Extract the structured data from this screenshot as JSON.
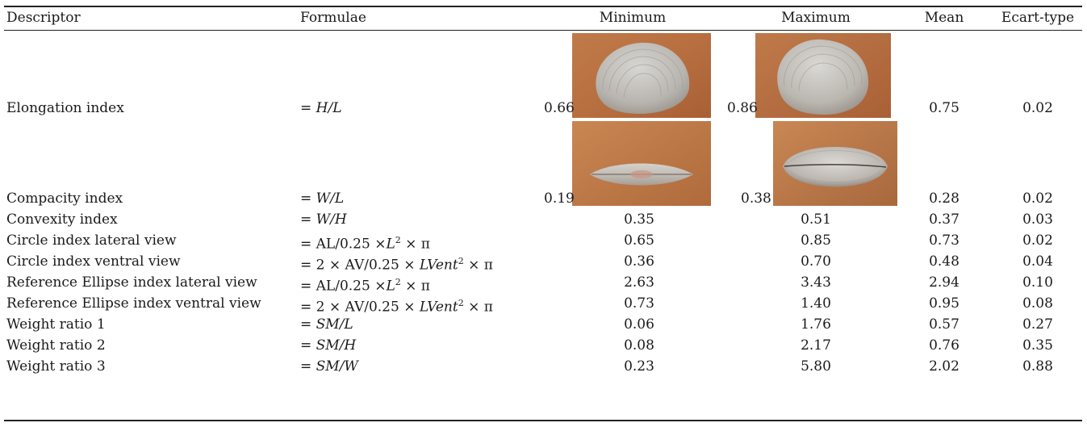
{
  "header": {
    "descriptor": "Descriptor",
    "formulae": "Formulae",
    "minimum": "Minimum",
    "maximum": "Maximum",
    "mean": "Mean",
    "ecart": "Ecart-type"
  },
  "rows": [
    {
      "descriptor": "Elongation index",
      "f_pre": "= ",
      "f_main": "H/L",
      "min": "0.66",
      "max": "0.86",
      "mean": "0.75",
      "sd": "0.02"
    },
    {
      "descriptor": "Compacity index",
      "f_pre": "= ",
      "f_main": "W/L",
      "min": "0.19",
      "max": "0.38",
      "mean": "0.28",
      "sd": "0.02"
    },
    {
      "descriptor": "Convexity index",
      "f_pre": "= ",
      "f_main": "W/H",
      "min": "0.35",
      "max": "0.51",
      "mean": "0.37",
      "sd": "0.03"
    },
    {
      "descriptor": "Circle index lateral view",
      "f_a": "= AL/0.25 ×",
      "f_b": "L",
      "f_sup": "2",
      "f_c": " × π",
      "min": "0.65",
      "max": "0.85",
      "mean": "0.73",
      "sd": "0.02"
    },
    {
      "descriptor": "Circle index ventral view",
      "f_a": "= 2 × AV/0.25 × ",
      "f_b": "LVent",
      "f_sup": "2",
      "f_c": " × π",
      "min": "0.36",
      "max": "0.70",
      "mean": "0.48",
      "sd": "0.04"
    },
    {
      "descriptor": "Reference Ellipse index lateral view",
      "f_a": "= AL/0.25 ×",
      "f_b": "L",
      "f_sup": "2",
      "f_c": " × π",
      "min": "2.63",
      "max": "3.43",
      "mean": "2.94",
      "sd": "0.10"
    },
    {
      "descriptor": "Reference Ellipse index ventral view",
      "f_a": "= 2 × AV/0.25 × ",
      "f_b": "LVent",
      "f_sup": "2",
      "f_c": " × π",
      "min": "0.73",
      "max": "1.40",
      "mean": "0.95",
      "sd": "0.08"
    },
    {
      "descriptor": "Weight ratio 1",
      "f_pre": "= ",
      "f_main": "SM/L",
      "min": "0.06",
      "max": "1.76",
      "mean": "0.57",
      "sd": "0.27"
    },
    {
      "descriptor": "Weight ratio 2",
      "f_pre": "= ",
      "f_main": "SM/H",
      "min": "0.08",
      "max": "2.17",
      "mean": "0.76",
      "sd": "0.35"
    },
    {
      "descriptor": "Weight ratio 3",
      "f_pre": "= ",
      "f_main": "SM/W",
      "min": "0.23",
      "max": "5.80",
      "mean": "2.02",
      "sd": "0.88"
    }
  ]
}
